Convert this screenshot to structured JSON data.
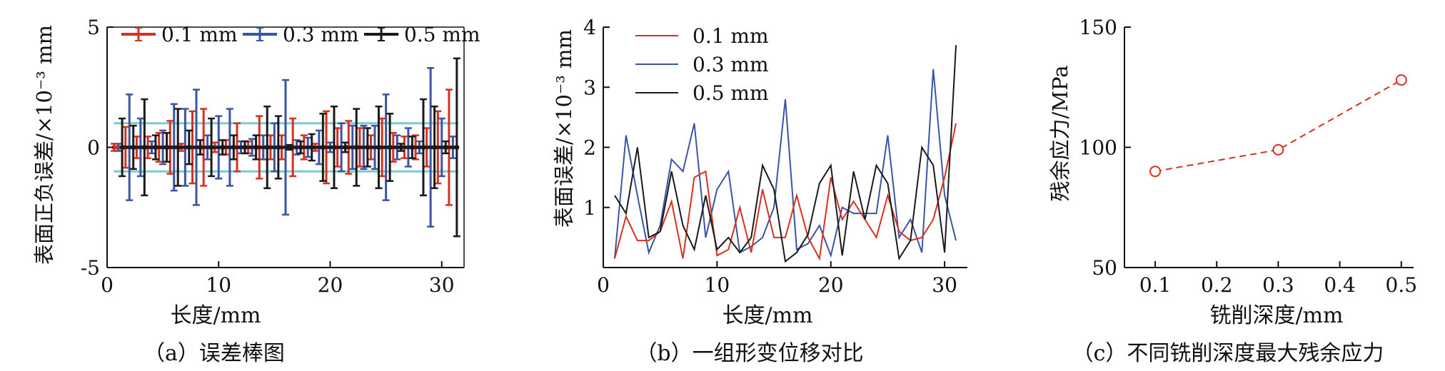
{
  "chart_data": [
    {
      "type": "errorbar",
      "caption": "（a）误差棒图",
      "xlabel": "长度/mm",
      "ylabel": "表面正负误差/×10⁻³ mm",
      "xlim": [
        0,
        32
      ],
      "ylim": [
        -5,
        5
      ],
      "xticks": [
        0,
        10,
        20,
        30
      ],
      "yticks": [
        -5,
        0,
        5
      ],
      "reference_lines": [
        1,
        -1
      ],
      "reference_color": "#7fc8d6",
      "legend_position": "top",
      "series": [
        {
          "name": "0.1 mm",
          "color": "#d7301f",
          "x": [
            1,
            2,
            3,
            4,
            5,
            6,
            7,
            8,
            9,
            10,
            11,
            12,
            13,
            14,
            15,
            16,
            17,
            18,
            19,
            20,
            21,
            22,
            23,
            24,
            25,
            26,
            27,
            28,
            29,
            30,
            31
          ],
          "err": [
            0.15,
            0.85,
            0.45,
            0.45,
            0.6,
            1.1,
            0.15,
            1.5,
            1.6,
            0.2,
            0.3,
            1.0,
            0.25,
            1.3,
            0.5,
            0.5,
            1.2,
            0.5,
            0.15,
            1.5,
            0.8,
            1.1,
            0.8,
            0.5,
            1.2,
            0.6,
            0.45,
            0.5,
            0.8,
            1.5,
            2.4
          ]
        },
        {
          "name": "0.3 mm",
          "color": "#3a55a4",
          "x": [
            1,
            2,
            3,
            4,
            5,
            6,
            7,
            8,
            9,
            10,
            11,
            12,
            13,
            14,
            15,
            16,
            17,
            18,
            19,
            20,
            21,
            22,
            23,
            24,
            25,
            26,
            27,
            28,
            29,
            30,
            31
          ],
          "err": [
            0.15,
            2.2,
            1.2,
            0.25,
            0.7,
            1.8,
            1.6,
            2.4,
            0.5,
            1.3,
            1.6,
            0.25,
            0.35,
            0.5,
            1.0,
            2.8,
            0.3,
            0.4,
            0.7,
            0.2,
            1.0,
            0.9,
            0.9,
            0.9,
            2.2,
            0.5,
            0.8,
            0.25,
            3.3,
            1.2,
            0.45
          ]
        },
        {
          "name": "0.5 mm",
          "color": "#1a1a1a",
          "x": [
            1,
            2,
            3,
            4,
            5,
            6,
            7,
            8,
            9,
            10,
            11,
            12,
            13,
            14,
            15,
            16,
            17,
            18,
            19,
            20,
            21,
            22,
            23,
            24,
            25,
            26,
            27,
            28,
            29,
            30,
            31
          ],
          "err": [
            1.2,
            0.9,
            2.0,
            0.5,
            0.6,
            1.6,
            0.7,
            0.3,
            1.2,
            0.3,
            0.5,
            0.25,
            0.5,
            1.7,
            1.3,
            0.1,
            0.25,
            0.55,
            1.4,
            1.7,
            0.2,
            1.6,
            0.8,
            1.7,
            1.4,
            0.15,
            0.45,
            2.0,
            1.7,
            0.25,
            3.7
          ]
        }
      ]
    },
    {
      "type": "line",
      "caption": "（b）一组形变位移对比",
      "xlabel": "长度/mm",
      "ylabel": "表面误差/×10⁻³ mm",
      "xlim": [
        0,
        32
      ],
      "ylim": [
        0,
        4
      ],
      "xticks": [
        0,
        10,
        20,
        30
      ],
      "yticks": [
        1,
        2,
        3,
        4
      ],
      "legend_position": "top-left",
      "series": [
        {
          "name": "0.1 mm",
          "color": "#d7301f",
          "x": [
            1,
            2,
            3,
            4,
            5,
            6,
            7,
            8,
            9,
            10,
            11,
            12,
            13,
            14,
            15,
            16,
            17,
            18,
            19,
            20,
            21,
            22,
            23,
            24,
            25,
            26,
            27,
            28,
            29,
            30,
            31
          ],
          "y": [
            0.15,
            0.85,
            0.45,
            0.45,
            0.6,
            1.1,
            0.15,
            1.5,
            1.6,
            0.2,
            0.3,
            1.0,
            0.25,
            1.3,
            0.5,
            0.5,
            1.2,
            0.5,
            0.15,
            1.5,
            0.8,
            1.1,
            0.8,
            0.5,
            1.2,
            0.6,
            0.45,
            0.5,
            0.8,
            1.5,
            2.4
          ]
        },
        {
          "name": "0.3 mm",
          "color": "#3a55a4",
          "x": [
            1,
            2,
            3,
            4,
            5,
            6,
            7,
            8,
            9,
            10,
            11,
            12,
            13,
            14,
            15,
            16,
            17,
            18,
            19,
            20,
            21,
            22,
            23,
            24,
            25,
            26,
            27,
            28,
            29,
            30,
            31
          ],
          "y": [
            0.15,
            2.2,
            1.2,
            0.25,
            0.7,
            1.8,
            1.6,
            2.4,
            0.5,
            1.3,
            1.6,
            0.25,
            0.35,
            0.5,
            1.0,
            2.8,
            0.3,
            0.4,
            0.7,
            0.2,
            1.0,
            0.9,
            0.9,
            0.9,
            2.2,
            0.5,
            0.8,
            0.25,
            3.3,
            1.2,
            0.45
          ]
        },
        {
          "name": "0.5 mm",
          "color": "#1a1a1a",
          "x": [
            1,
            2,
            3,
            4,
            5,
            6,
            7,
            8,
            9,
            10,
            11,
            12,
            13,
            14,
            15,
            16,
            17,
            18,
            19,
            20,
            21,
            22,
            23,
            24,
            25,
            26,
            27,
            28,
            29,
            30,
            31
          ],
          "y": [
            1.2,
            0.9,
            2.0,
            0.5,
            0.6,
            1.6,
            0.7,
            0.3,
            1.2,
            0.3,
            0.5,
            0.25,
            0.5,
            1.7,
            1.3,
            0.1,
            0.25,
            0.55,
            1.4,
            1.7,
            0.2,
            1.6,
            0.8,
            1.7,
            1.4,
            0.15,
            0.45,
            2.0,
            1.7,
            0.25,
            3.7
          ]
        }
      ]
    },
    {
      "type": "scatter-line",
      "caption": "（c）不同铣削深度最大残余应力",
      "xlabel": "铣削深度/mm",
      "ylabel": "残余应力/MPa",
      "xlim": [
        0.05,
        0.52
      ],
      "ylim": [
        50,
        150
      ],
      "xticks": [
        0.1,
        0.2,
        0.3,
        0.4,
        0.5
      ],
      "yticks": [
        50,
        100,
        150
      ],
      "series": [
        {
          "color": "#d7301f",
          "x": [
            0.1,
            0.3,
            0.5
          ],
          "y": [
            90,
            99,
            128
          ]
        }
      ]
    }
  ]
}
